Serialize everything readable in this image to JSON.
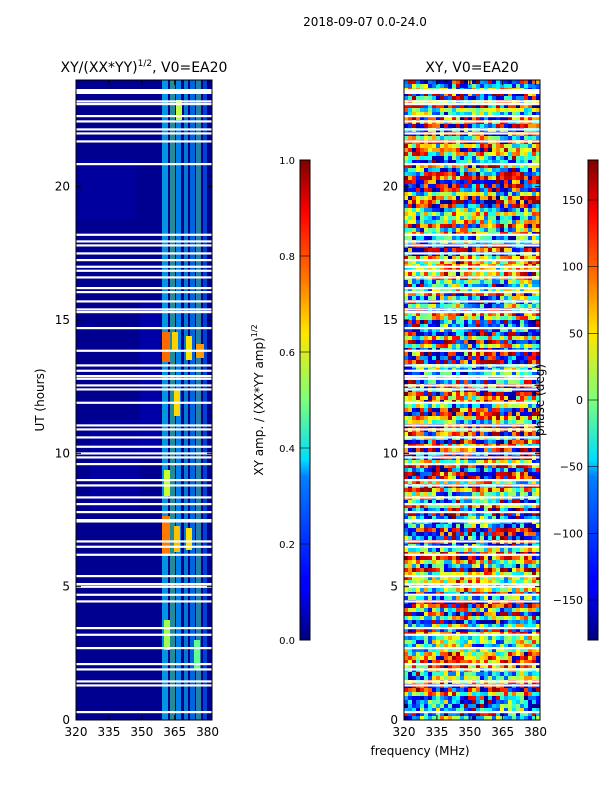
{
  "suptitle": "2018-09-07 0.0-24.0",
  "chart_data": [
    {
      "type": "heatmap",
      "title_main": "XY/(XX*YY)",
      "title_sup": "1/2",
      "title_tail": ", V0=EA20",
      "xlabel": "",
      "ylabel": "UT (hours)",
      "xlim": [
        320,
        382
      ],
      "ylim": [
        0,
        24
      ],
      "xticks": [
        320,
        335,
        350,
        365,
        380
      ],
      "yticks": [
        0,
        5,
        10,
        15,
        20
      ],
      "colormap": "jet",
      "description_values": "Normalized XY amplitude, mostly ~0.05-0.15 background with bright bands (0.6-0.9) between ~362 and ~380 MHz",
      "colorbar": {
        "label_main": "XY amp. / (XX*YY amp)",
        "label_sup": "1/2",
        "range": [
          0,
          1
        ],
        "ticks": [
          "0.0",
          "0.2",
          "0.4",
          "0.6",
          "0.8",
          "1.0"
        ]
      }
    },
    {
      "type": "heatmap",
      "title": "XY, V0=EA20",
      "xlabel": "frequency (MHz)",
      "ylabel": "",
      "xlim": [
        320,
        382
      ],
      "ylim": [
        0,
        24
      ],
      "xticks": [
        320,
        335,
        350,
        365,
        380
      ],
      "yticks": [
        0,
        5,
        10,
        15,
        20
      ],
      "colormap": "jet",
      "description_values": "XY phase in degrees, varying across full range -180 to 180",
      "colorbar": {
        "label": "phase (deg)",
        "range": [
          -180,
          180
        ],
        "ticks": [
          "-150",
          "-100",
          "-50",
          "0",
          "50",
          "100",
          "150"
        ]
      }
    }
  ],
  "flagged_gaps_hours": [
    0.3,
    1.3,
    1.45,
    1.9,
    2.1,
    2.7,
    3.2,
    3.45,
    4.45,
    4.7,
    5.0,
    5.1,
    5.4,
    6.2,
    6.5,
    6.7,
    7.45,
    7.5,
    7.8,
    8.1,
    8.35,
    8.8,
    9.0,
    9.6,
    9.85,
    10.0,
    10.25,
    10.6,
    10.9,
    11.05,
    11.9,
    12.4,
    12.55,
    12.8,
    12.9,
    13.1,
    13.3,
    13.85,
    14.7,
    15.3,
    15.4,
    15.7,
    16.05,
    16.2,
    16.6,
    16.85,
    17.0,
    17.25,
    17.5,
    17.8,
    17.95,
    18.2,
    20.85,
    21.7,
    22.0,
    22.15,
    22.45,
    22.65,
    23.1,
    23.2
  ]
}
